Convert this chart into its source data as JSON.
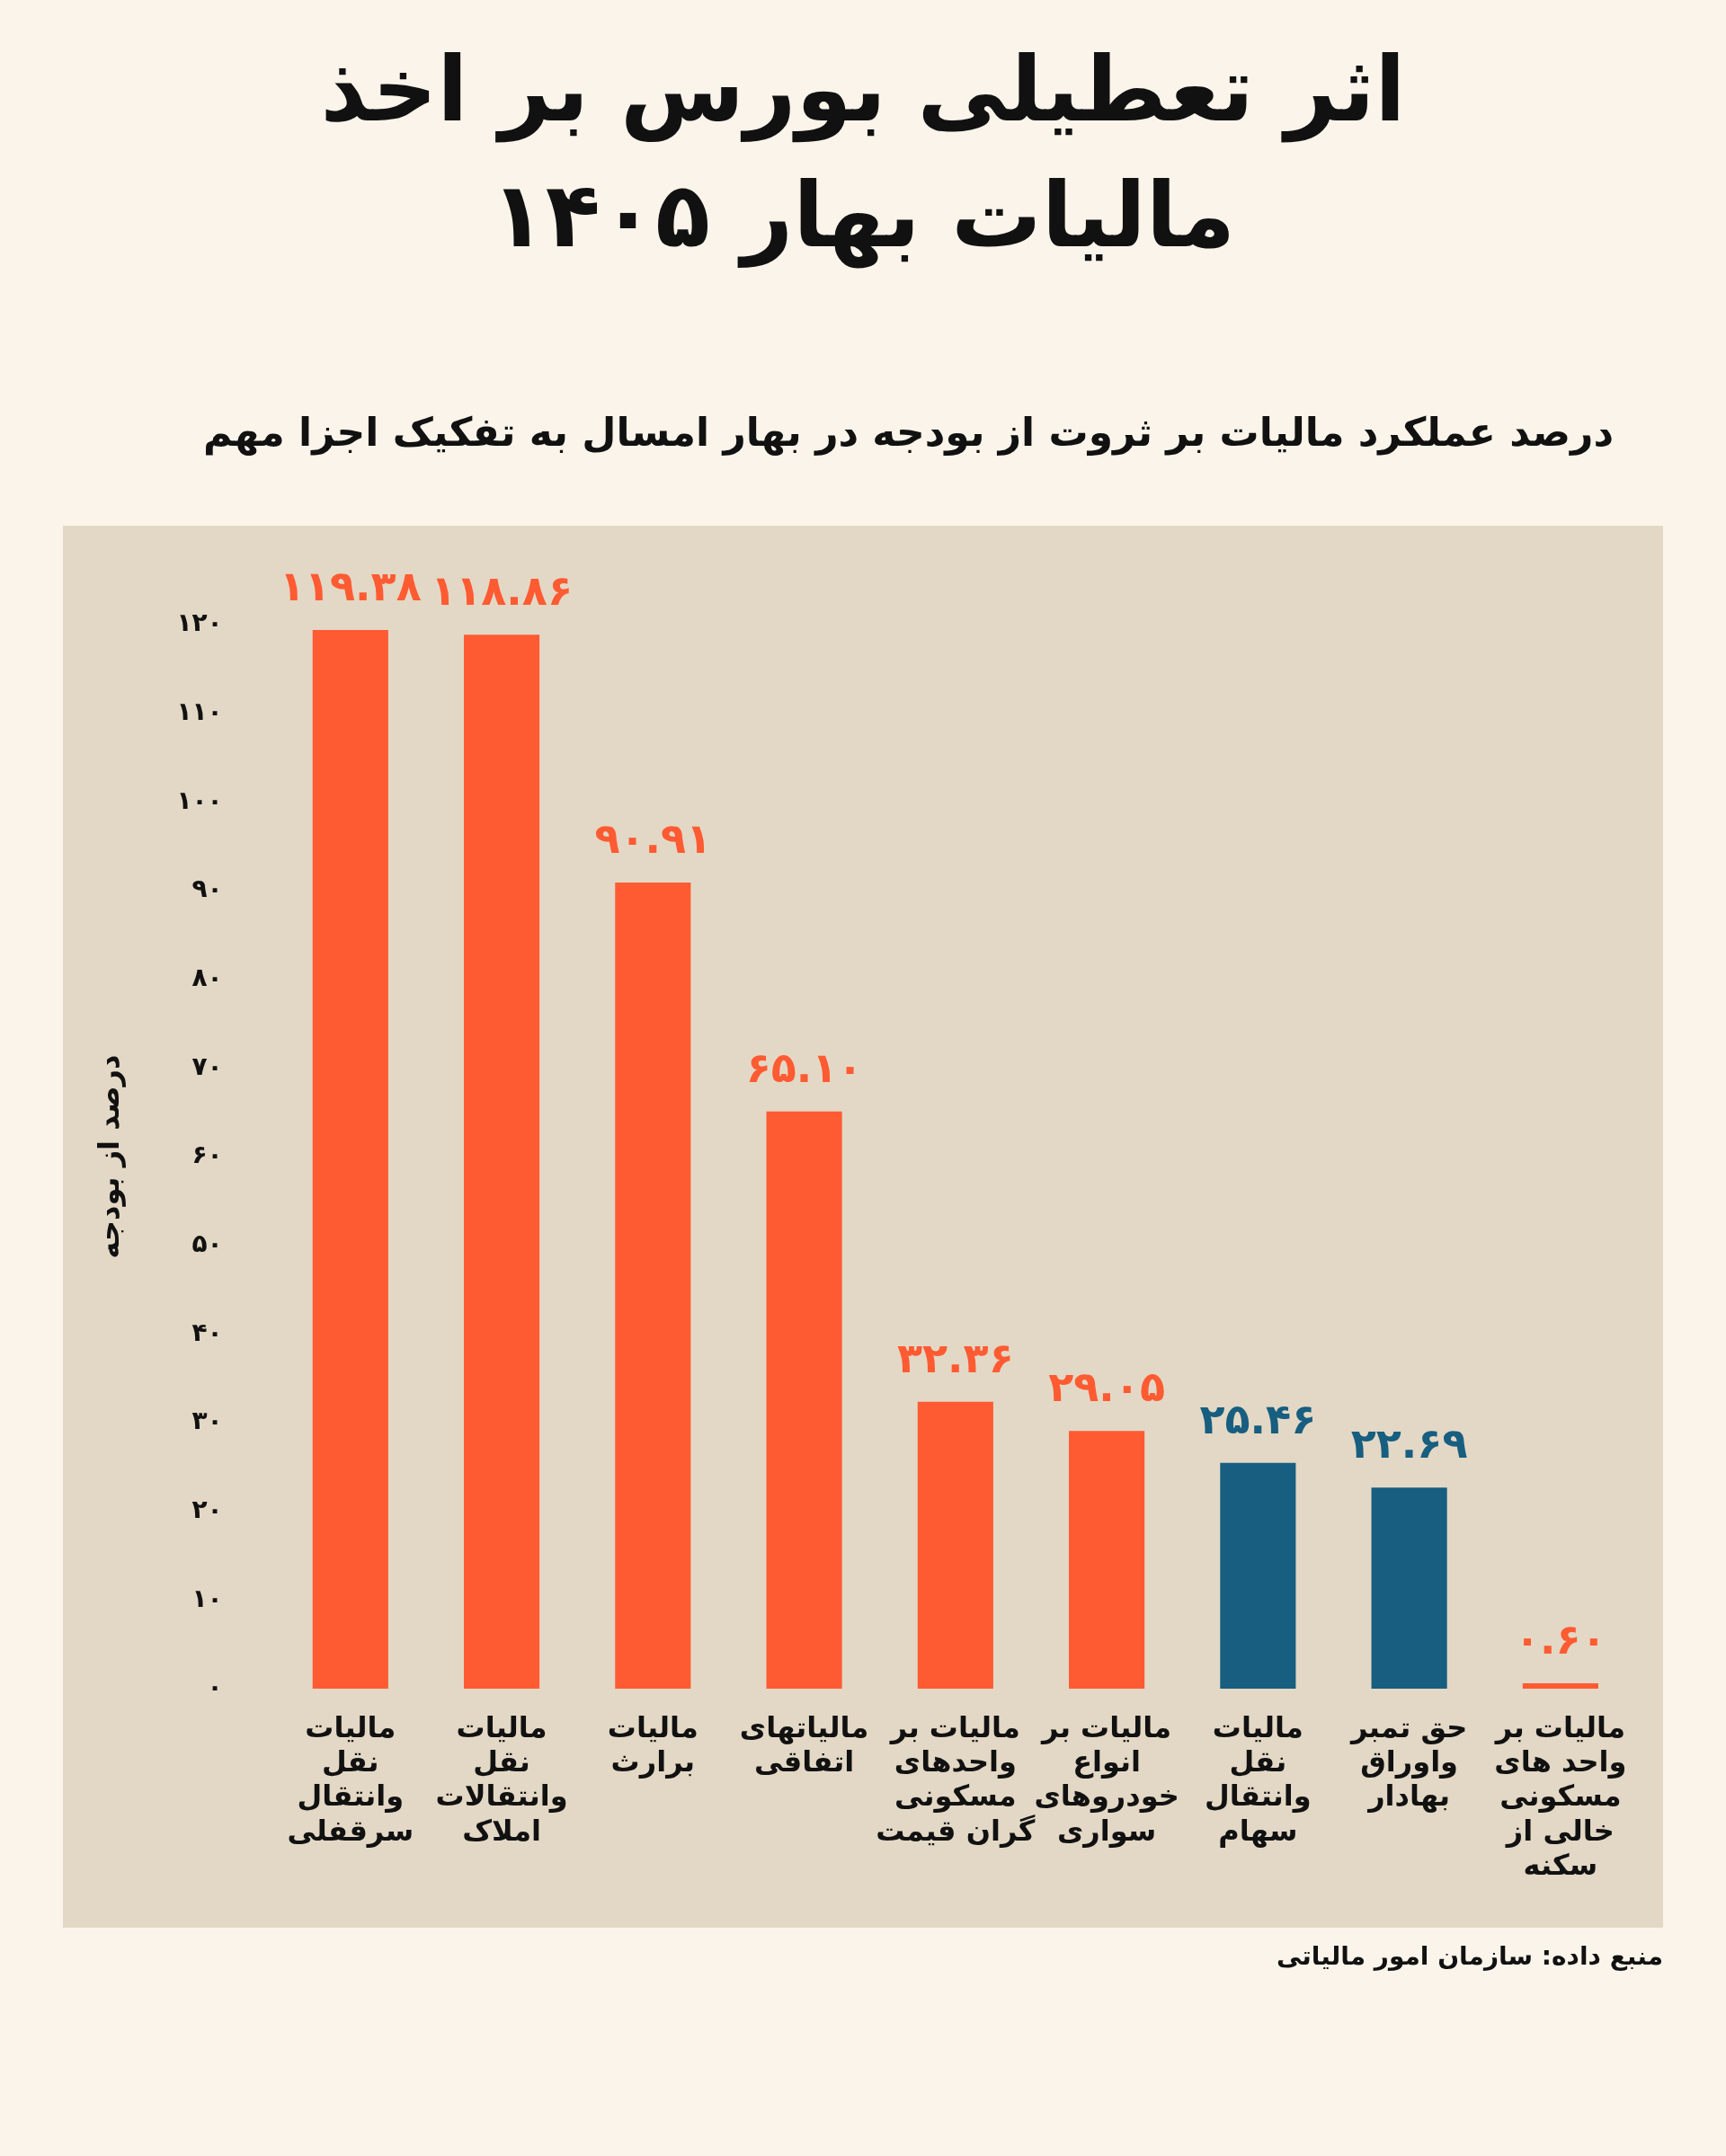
{
  "chart_data": {
    "type": "bar",
    "title": "اثر تعطیلی بورس بر اخذ مالیات بهار ۱۴۰۵",
    "subtitle": "درصد عملکرد مالیات بر ثروت از بودجه در بهار امسال به تفکیک اجزا مهم",
    "ylabel": "درصد از بودجه",
    "categories": [
      "مالیات نقل وانتقال سرقفلی",
      "مالیات نقل وانتقالات املاک",
      "مالیات برارث",
      "مالیاتهای اتفاقی",
      "مالیات بر واحدهای مسکونی گران قیمت",
      "مالیات بر انواع خودروهای سواری",
      "مالیات نقل وانتقال سهام",
      "حق تمبر واوراق بهادار",
      "مالیات بر واحد های مسکونی خالی از سکنه"
    ],
    "values": [
      119.38,
      118.86,
      90.91,
      65.1,
      32.36,
      29.05,
      25.46,
      22.69,
      0.6
    ],
    "colors": [
      "#fe5b33",
      "#fe5b33",
      "#fe5b33",
      "#fe5b33",
      "#fe5b33",
      "#fe5b33",
      "#175e80",
      "#175e80",
      "#fe5b33"
    ],
    "value_labels": [
      "۱۱۹.۳۸",
      "۱۱۸.۸۶",
      "۹۰.۹۱",
      "۶۵.۱۰",
      "۳۲.۳۶",
      "۲۹.۰۵",
      "۲۵.۴۶",
      "۲۲.۶۹",
      "۰.۶۰"
    ],
    "ylim": [
      0,
      120
    ],
    "yticks": [
      {
        "value": 0,
        "label": "۰"
      },
      {
        "value": 10,
        "label": "۱۰"
      },
      {
        "value": 20,
        "label": "۲۰"
      },
      {
        "value": 30,
        "label": "۳۰"
      },
      {
        "value": 40,
        "label": "۴۰"
      },
      {
        "value": 50,
        "label": "۵۰"
      },
      {
        "value": 60,
        "label": "۶۰"
      },
      {
        "value": 70,
        "label": "۷۰"
      },
      {
        "value": 80,
        "label": "۸۰"
      },
      {
        "value": 90,
        "label": "۹۰"
      },
      {
        "value": 100,
        "label": "۱۰۰"
      },
      {
        "value": 110,
        "label": "۱۱۰"
      },
      {
        "value": 120,
        "label": "۱۲۰"
      }
    ],
    "grid": false,
    "legend": false,
    "annotations": [
      "منبع داده: سازمان امور مالیاتی"
    ]
  }
}
